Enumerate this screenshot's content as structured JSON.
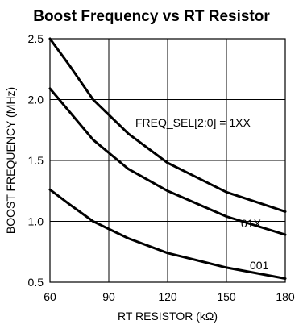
{
  "chart_data": {
    "type": "line",
    "title": "Boost Frequency vs RT Resistor",
    "xlabel": "RT RESISTOR (kΩ)",
    "ylabel": "BOOST FREQUENCY (MHz)",
    "xlim": [
      60,
      180
    ],
    "ylim": [
      0.5,
      2.5
    ],
    "xticks": [
      60,
      90,
      120,
      150,
      180
    ],
    "yticks": [
      0.5,
      1.0,
      1.5,
      2.0,
      2.5
    ],
    "xtick_labels": [
      "60",
      "90",
      "120",
      "150",
      "180"
    ],
    "ytick_labels": [
      "0.5",
      "1.0",
      "1.5",
      "2.0",
      "2.5"
    ],
    "grid": true,
    "series": [
      {
        "name": "FREQ_SEL[2:0] = 1XX",
        "x": [
          60,
          70,
          82,
          100,
          120,
          150,
          180
        ],
        "y": [
          2.5,
          2.28,
          2.0,
          1.72,
          1.48,
          1.24,
          1.08
        ]
      },
      {
        "name": "01X",
        "x": [
          60,
          70,
          82,
          100,
          120,
          150,
          180
        ],
        "y": [
          2.09,
          1.9,
          1.67,
          1.43,
          1.25,
          1.04,
          0.89
        ]
      },
      {
        "name": "001",
        "x": [
          60,
          70,
          82,
          100,
          120,
          150,
          180
        ],
        "y": [
          1.26,
          1.14,
          1.0,
          0.86,
          0.74,
          0.62,
          0.53
        ]
      }
    ]
  }
}
